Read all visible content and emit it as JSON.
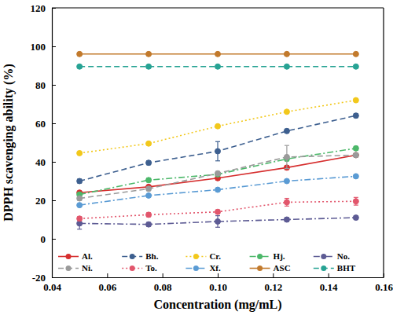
{
  "chart_data": {
    "type": "line",
    "x_label": "Concentration (mg/mL)",
    "y_label": "DPPH scavenging ability (%)",
    "x": [
      0.05,
      0.075,
      0.1,
      0.125,
      0.15
    ],
    "xlim": [
      0.04,
      0.16
    ],
    "xticks": [
      0.04,
      0.06,
      0.08,
      {
        "value": 0.1,
        "label": "0.10"
      },
      0.12,
      0.14,
      0.16
    ],
    "ylim": [
      -20,
      120
    ],
    "yticks": [
      -20,
      0,
      20,
      40,
      60,
      80,
      100,
      120
    ],
    "grid": false,
    "legend": "lower center",
    "marker": "circle",
    "series": [
      {
        "name": "Al.",
        "color": "#d62f2f",
        "line_style": "solid",
        "values": [
          24,
          27,
          31.5,
          37,
          43.5
        ],
        "errors": [
          0.5,
          0.5,
          1,
          1,
          0.5
        ]
      },
      {
        "name": "Bh.",
        "color": "#3d5f8f",
        "line_style": "dashed",
        "values": [
          30,
          39.5,
          45.5,
          56,
          64
        ],
        "errors": [
          1,
          1,
          5,
          1,
          1
        ]
      },
      {
        "name": "Cr.",
        "color": "#f2c81b",
        "line_style": "dotted",
        "values": [
          44.5,
          49.5,
          58.5,
          66,
          72
        ],
        "errors": [
          0.5,
          0.5,
          0.5,
          0.5,
          0.5
        ]
      },
      {
        "name": "Hj.",
        "color": "#4cb86a",
        "line_style": "dashdot",
        "values": [
          23,
          30.5,
          33.5,
          41.5,
          47
        ],
        "errors": [
          1,
          1,
          1,
          1,
          1
        ]
      },
      {
        "name": "No.",
        "color": "#5d5b94",
        "line_style": "dashdot",
        "values": [
          8,
          7.5,
          9,
          10,
          11
        ],
        "errors": [
          3,
          1,
          3,
          1,
          1
        ]
      },
      {
        "name": "Ni.",
        "color": "#9a9a9a",
        "line_style": "dashed",
        "values": [
          21,
          26,
          34,
          42.5,
          43.5
        ],
        "errors": [
          1,
          1,
          1,
          6,
          1
        ]
      },
      {
        "name": "To.",
        "color": "#e2566c",
        "line_style": "dotted",
        "values": [
          10.5,
          12.5,
          14,
          19,
          19.5
        ],
        "errors": [
          1,
          1,
          1,
          2,
          2
        ]
      },
      {
        "name": "Xf.",
        "color": "#5a9bd4",
        "line_style": "dashdot",
        "values": [
          17.5,
          22.5,
          25.5,
          30,
          32.5
        ],
        "errors": [
          0.5,
          0.5,
          0.5,
          0.5,
          0.5
        ]
      },
      {
        "name": "ASC",
        "color": "#c27a2c",
        "line_style": "solid",
        "values": [
          96,
          96,
          96,
          96,
          96
        ],
        "errors": [
          0.5,
          0.5,
          0.5,
          0.5,
          0.5
        ]
      },
      {
        "name": "BHT",
        "color": "#27a394",
        "line_style": "dashed",
        "values": [
          89.5,
          89.5,
          89.5,
          89.5,
          89.5
        ],
        "errors": [
          0.5,
          0.5,
          0.5,
          0.5,
          0.5
        ]
      }
    ]
  }
}
